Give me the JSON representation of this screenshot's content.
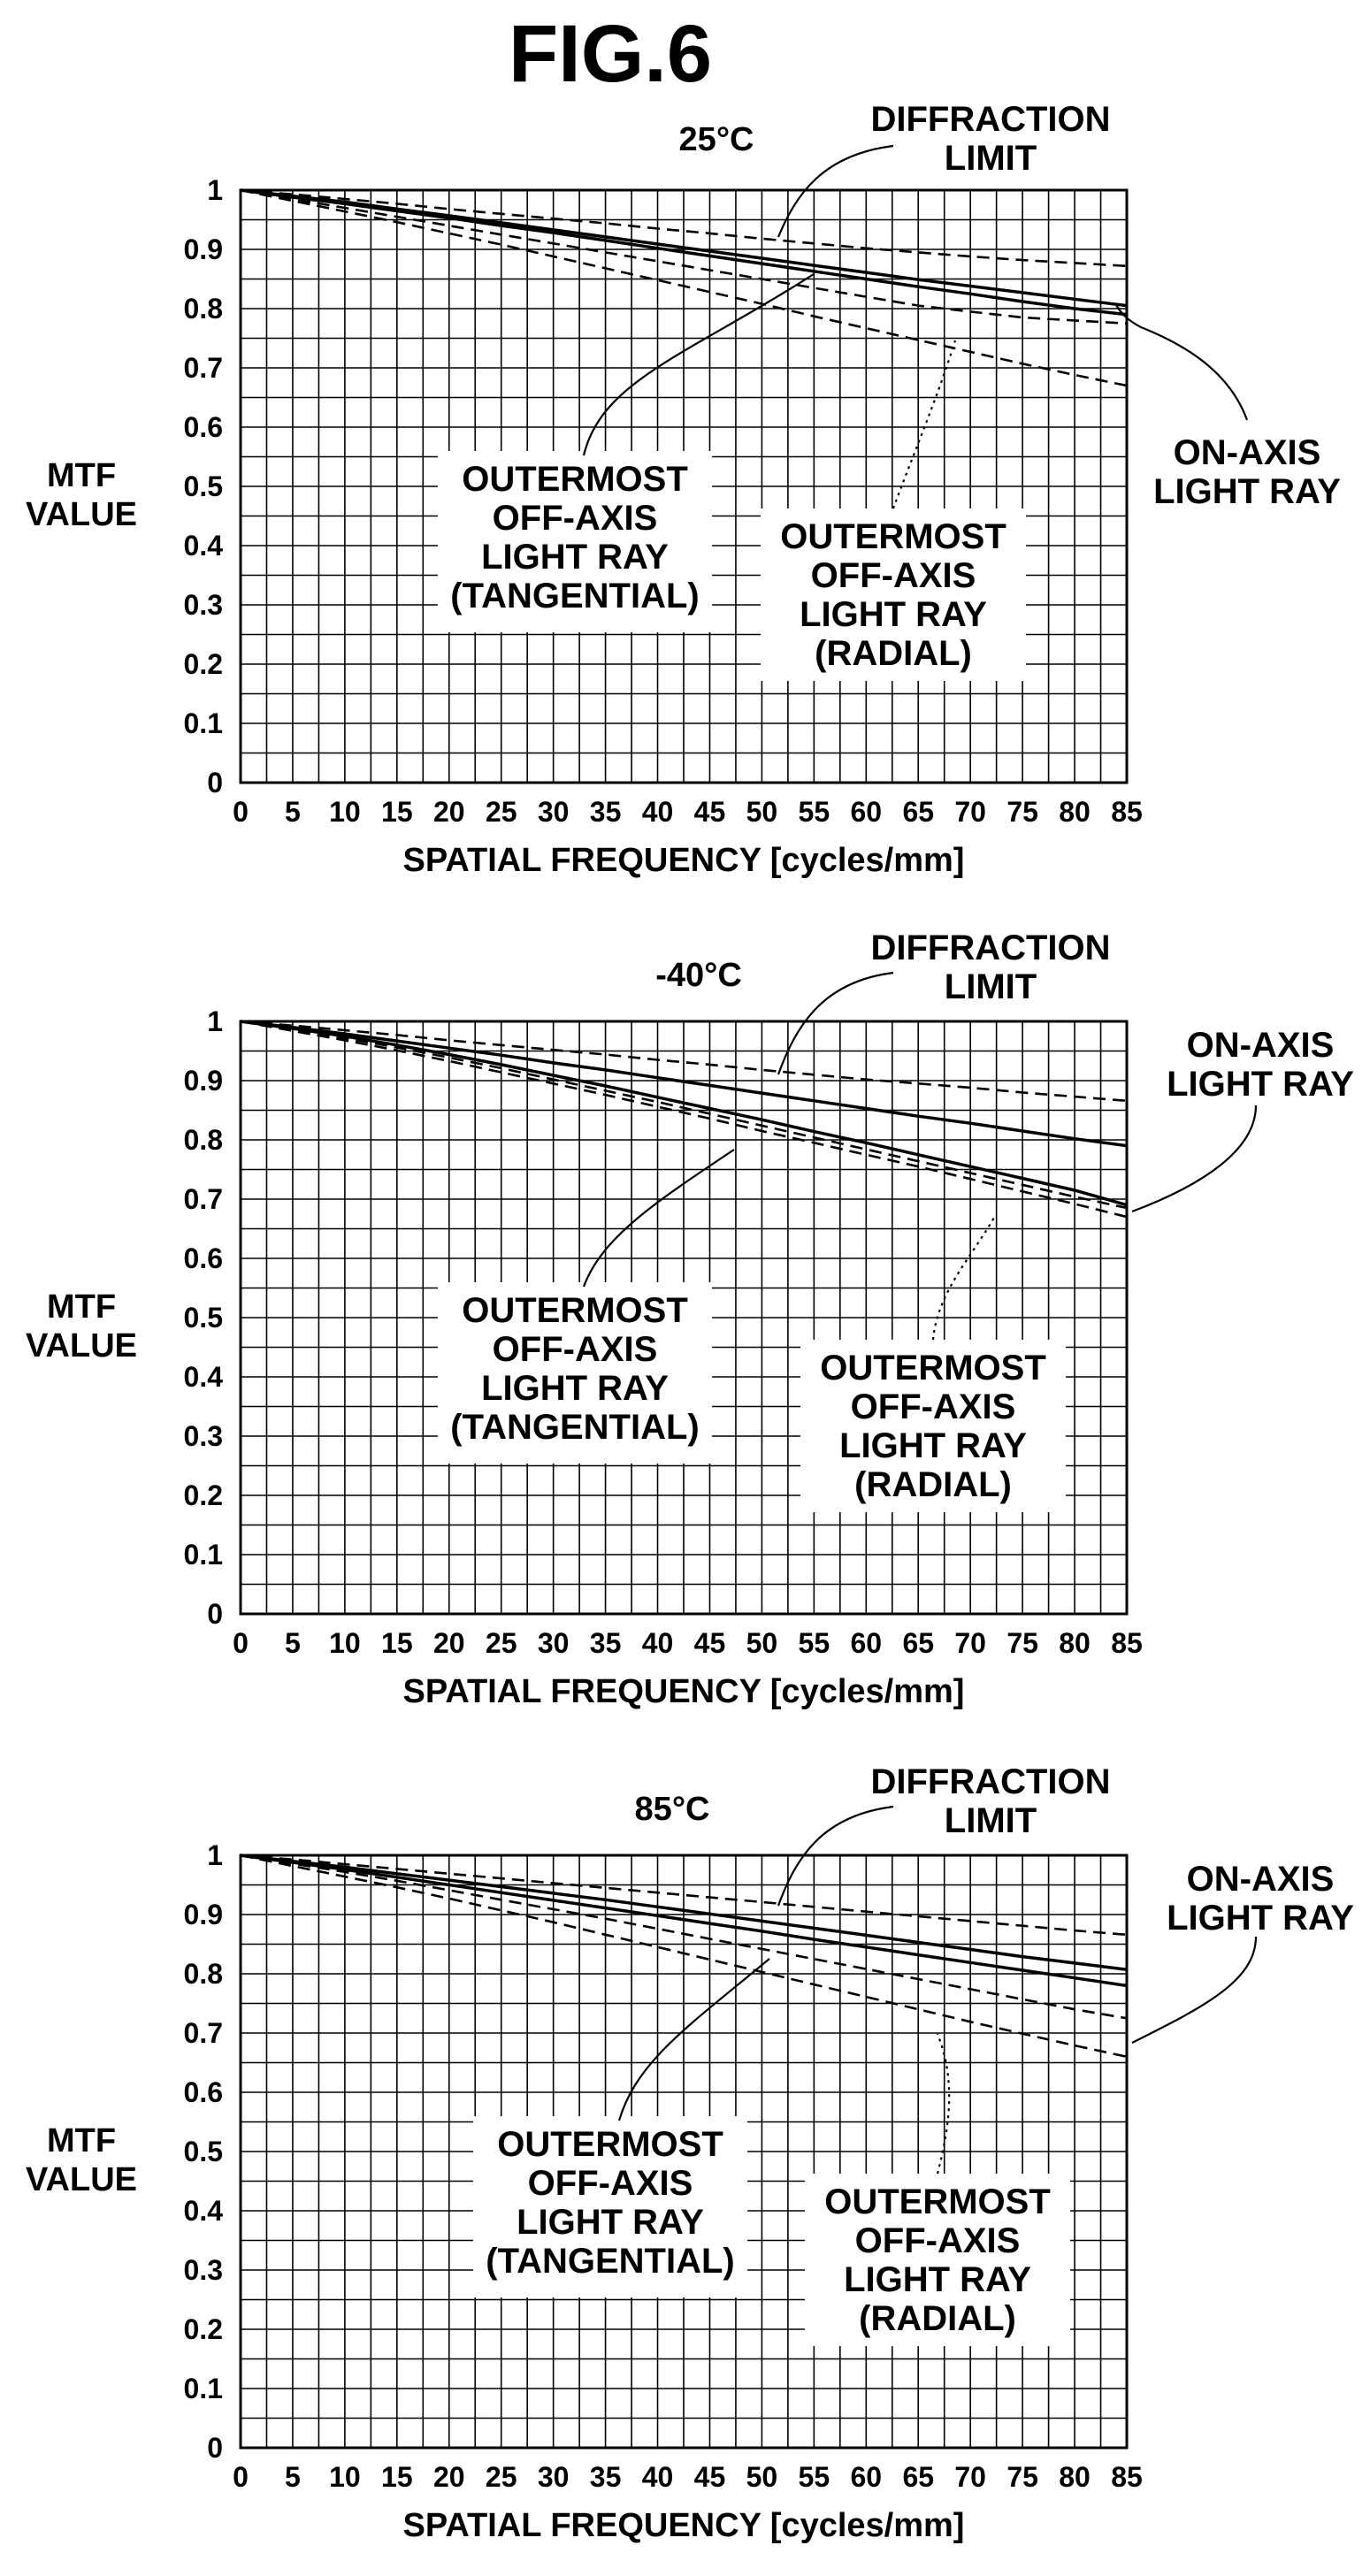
{
  "title": "FIG.6",
  "chart_data": [
    {
      "type": "line",
      "temperature": "25°C",
      "xlabel": "SPATIAL FREQUENCY [cycles/mm]",
      "ylabel_lines": [
        "MTF",
        "VALUE"
      ],
      "xlim": [
        0,
        85
      ],
      "ylim": [
        0,
        1
      ],
      "x_ticks": [
        "0",
        "5",
        "10",
        "15",
        "20",
        "25",
        "30",
        "35",
        "40",
        "45",
        "50",
        "55",
        "60",
        "65",
        "70",
        "75",
        "80",
        "85"
      ],
      "y_ticks": [
        "0",
        "0.1",
        "0.2",
        "0.3",
        "0.4",
        "0.5",
        "0.6",
        "0.7",
        "0.8",
        "0.9",
        "1"
      ],
      "grid": true,
      "x": [
        0,
        5,
        10,
        15,
        20,
        25,
        30,
        35,
        40,
        45,
        50,
        55,
        60,
        65,
        70,
        75,
        80,
        85
      ],
      "series": [
        {
          "style": "dashed",
          "values": [
            1.0,
            0.993,
            0.985,
            0.977,
            0.968,
            0.96,
            0.952,
            0.944,
            0.935,
            0.927,
            0.918,
            0.91,
            0.902,
            0.895,
            0.888,
            0.882,
            0.877,
            0.872
          ]
        },
        {
          "style": "solid",
          "values": [
            1.0,
            0.99,
            0.98,
            0.968,
            0.957,
            0.945,
            0.933,
            0.921,
            0.909,
            0.897,
            0.885,
            0.873,
            0.861,
            0.849,
            0.838,
            0.827,
            0.816,
            0.805
          ]
        },
        {
          "style": "solid",
          "values": [
            1.0,
            0.988,
            0.977,
            0.965,
            0.953,
            0.94,
            0.928,
            0.915,
            0.902,
            0.889,
            0.876,
            0.863,
            0.85,
            0.837,
            0.825,
            0.812,
            0.8,
            0.79
          ]
        },
        {
          "style": "dashed",
          "values": [
            1.0,
            0.985,
            0.97,
            0.955,
            0.94,
            0.925,
            0.91,
            0.895,
            0.88,
            0.865,
            0.85,
            0.835,
            0.82,
            0.805,
            0.795,
            0.785,
            0.78,
            0.775
          ]
        },
        {
          "style": "dashed",
          "values": [
            1.0,
            0.982,
            0.964,
            0.946,
            0.927,
            0.908,
            0.888,
            0.868,
            0.848,
            0.828,
            0.808,
            0.787,
            0.767,
            0.747,
            0.727,
            0.707,
            0.688,
            0.67
          ]
        }
      ],
      "annotations": [
        {
          "lines": [
            "DIFFRACTION",
            "LIMIT"
          ]
        },
        {
          "lines": [
            "ON-AXIS",
            "LIGHT RAY"
          ]
        },
        {
          "lines": [
            "OUTERMOST",
            "OFF-AXIS",
            "LIGHT RAY",
            "(TANGENTIAL)"
          ]
        },
        {
          "lines": [
            "OUTERMOST",
            "OFF-AXIS",
            "LIGHT RAY",
            "(RADIAL)"
          ]
        }
      ]
    },
    {
      "type": "line",
      "temperature": "-40°C",
      "xlabel": "SPATIAL FREQUENCY [cycles/mm]",
      "ylabel_lines": [
        "MTF",
        "VALUE"
      ],
      "xlim": [
        0,
        85
      ],
      "ylim": [
        0,
        1
      ],
      "x_ticks": [
        "0",
        "5",
        "10",
        "15",
        "20",
        "25",
        "30",
        "35",
        "40",
        "45",
        "50",
        "55",
        "60",
        "65",
        "70",
        "75",
        "80",
        "85"
      ],
      "y_ticks": [
        "0",
        "0.1",
        "0.2",
        "0.3",
        "0.4",
        "0.5",
        "0.6",
        "0.7",
        "0.8",
        "0.9",
        "1"
      ],
      "grid": true,
      "x": [
        0,
        5,
        10,
        15,
        20,
        25,
        30,
        35,
        40,
        45,
        50,
        55,
        60,
        65,
        70,
        75,
        80,
        85
      ],
      "series": [
        {
          "style": "dashed",
          "values": [
            1.0,
            0.993,
            0.985,
            0.977,
            0.968,
            0.96,
            0.952,
            0.944,
            0.935,
            0.927,
            0.918,
            0.91,
            0.902,
            0.895,
            0.888,
            0.88,
            0.873,
            0.866
          ]
        },
        {
          "style": "solid",
          "values": [
            1.0,
            0.99,
            0.979,
            0.967,
            0.955,
            0.943,
            0.93,
            0.918,
            0.905,
            0.892,
            0.879,
            0.866,
            0.853,
            0.84,
            0.828,
            0.815,
            0.802,
            0.79
          ]
        },
        {
          "style": "solid",
          "values": [
            1.0,
            0.988,
            0.975,
            0.96,
            0.944,
            0.927,
            0.909,
            0.891,
            0.872,
            0.853,
            0.834,
            0.814,
            0.795,
            0.775,
            0.755,
            0.735,
            0.715,
            0.69
          ]
        },
        {
          "style": "dashed",
          "values": [
            1.0,
            0.986,
            0.972,
            0.956,
            0.939,
            0.921,
            0.902,
            0.883,
            0.864,
            0.844,
            0.824,
            0.804,
            0.784,
            0.764,
            0.744,
            0.724,
            0.704,
            0.685
          ]
        },
        {
          "style": "dashed",
          "values": [
            1.0,
            0.984,
            0.968,
            0.951,
            0.933,
            0.914,
            0.895,
            0.876,
            0.856,
            0.836,
            0.815,
            0.795,
            0.775,
            0.755,
            0.734,
            0.713,
            0.692,
            0.67
          ]
        }
      ],
      "annotations": [
        {
          "lines": [
            "DIFFRACTION",
            "LIMIT"
          ]
        },
        {
          "lines": [
            "ON-AXIS",
            "LIGHT RAY"
          ]
        },
        {
          "lines": [
            "OUTERMOST",
            "OFF-AXIS",
            "LIGHT RAY",
            "(TANGENTIAL)"
          ]
        },
        {
          "lines": [
            "OUTERMOST",
            "OFF-AXIS",
            "LIGHT RAY",
            "(RADIAL)"
          ]
        }
      ]
    },
    {
      "type": "line",
      "temperature": "85°C",
      "xlabel": "SPATIAL FREQUENCY [cycles/mm]",
      "ylabel_lines": [
        "MTF",
        "VALUE"
      ],
      "xlim": [
        0,
        85
      ],
      "ylim": [
        0,
        1
      ],
      "x_ticks": [
        "0",
        "5",
        "10",
        "15",
        "20",
        "25",
        "30",
        "35",
        "40",
        "45",
        "50",
        "55",
        "60",
        "65",
        "70",
        "75",
        "80",
        "85"
      ],
      "y_ticks": [
        "0",
        "0.1",
        "0.2",
        "0.3",
        "0.4",
        "0.5",
        "0.6",
        "0.7",
        "0.8",
        "0.9",
        "1"
      ],
      "grid": true,
      "x": [
        0,
        5,
        10,
        15,
        20,
        25,
        30,
        35,
        40,
        45,
        50,
        55,
        60,
        65,
        70,
        75,
        80,
        85
      ],
      "series": [
        {
          "style": "dashed",
          "values": [
            1.0,
            0.993,
            0.985,
            0.977,
            0.969,
            0.961,
            0.953,
            0.945,
            0.937,
            0.929,
            0.921,
            0.913,
            0.905,
            0.897,
            0.889,
            0.881,
            0.873,
            0.866
          ]
        },
        {
          "style": "solid",
          "values": [
            1.0,
            0.99,
            0.98,
            0.969,
            0.958,
            0.947,
            0.936,
            0.925,
            0.913,
            0.901,
            0.889,
            0.877,
            0.865,
            0.853,
            0.841,
            0.829,
            0.818,
            0.807
          ]
        },
        {
          "style": "solid",
          "values": [
            1.0,
            0.988,
            0.976,
            0.963,
            0.95,
            0.937,
            0.924,
            0.911,
            0.898,
            0.885,
            0.872,
            0.858,
            0.845,
            0.832,
            0.819,
            0.806,
            0.793,
            0.78
          ]
        },
        {
          "style": "dashed",
          "values": [
            1.0,
            0.986,
            0.972,
            0.957,
            0.941,
            0.925,
            0.909,
            0.893,
            0.876,
            0.859,
            0.842,
            0.825,
            0.808,
            0.791,
            0.774,
            0.757,
            0.74,
            0.725
          ]
        },
        {
          "style": "dashed",
          "values": [
            1.0,
            0.982,
            0.964,
            0.946,
            0.927,
            0.907,
            0.887,
            0.866,
            0.845,
            0.824,
            0.803,
            0.782,
            0.761,
            0.74,
            0.719,
            0.699,
            0.679,
            0.66
          ]
        }
      ],
      "annotations": [
        {
          "lines": [
            "DIFFRACTION",
            "LIMIT"
          ]
        },
        {
          "lines": [
            "ON-AXIS",
            "LIGHT RAY"
          ]
        },
        {
          "lines": [
            "OUTERMOST",
            "OFF-AXIS",
            "LIGHT RAY",
            "(TANGENTIAL)"
          ]
        },
        {
          "lines": [
            "OUTERMOST",
            "OFF-AXIS",
            "LIGHT RAY",
            "(RADIAL)"
          ]
        }
      ]
    }
  ]
}
